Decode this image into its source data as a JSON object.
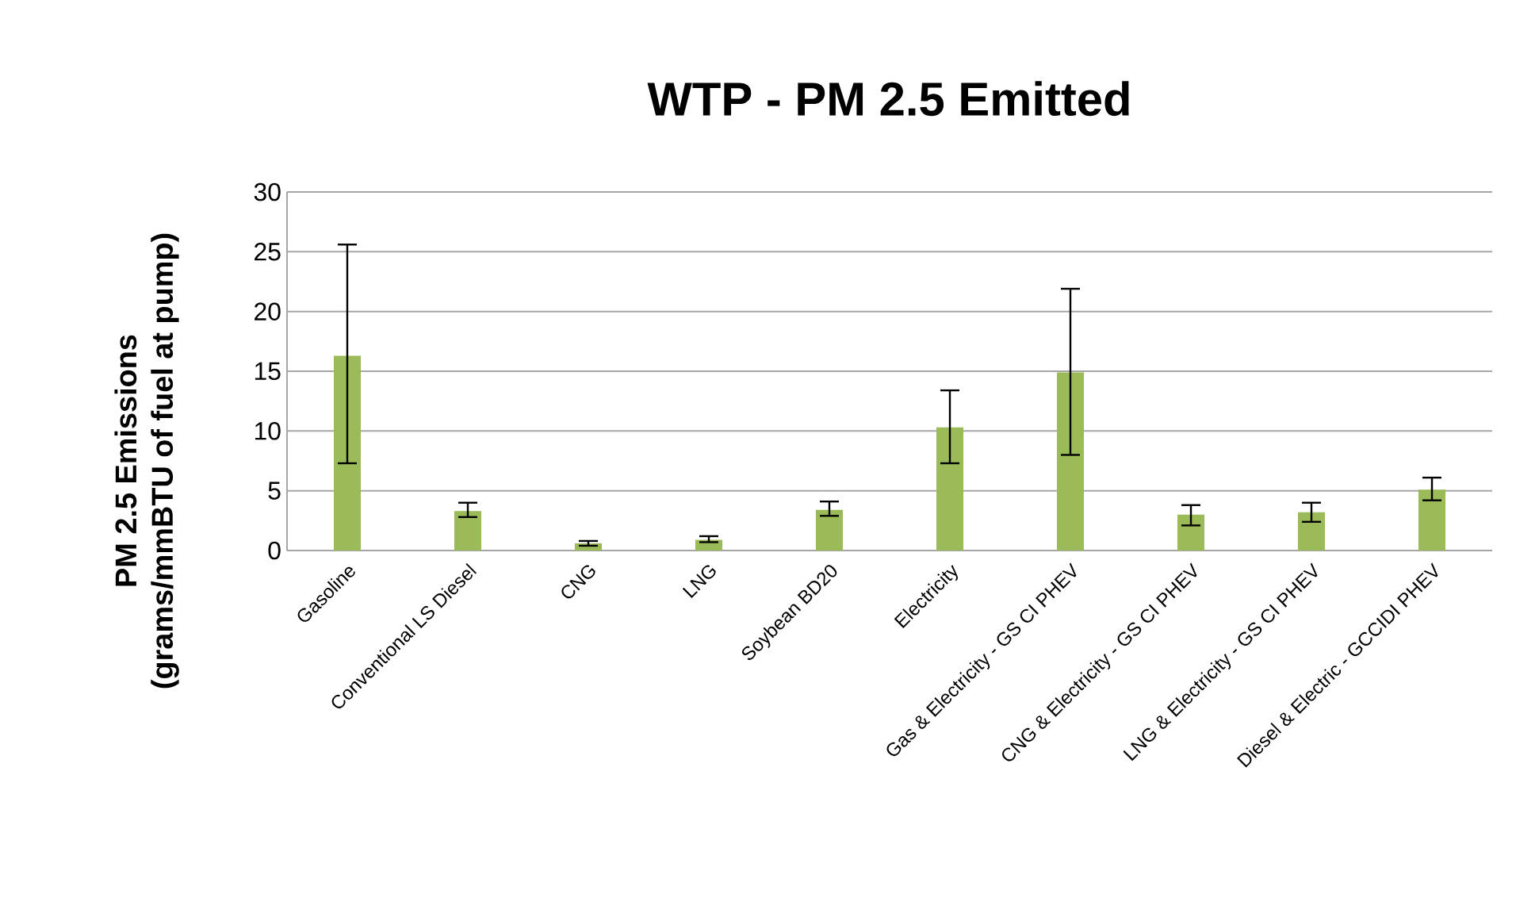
{
  "chart_data": {
    "type": "bar",
    "title": "WTP - PM 2.5 Emitted",
    "ylabel": "PM 2.5 Emissions\n(grams/mmBTU of fuel at pump)",
    "categories": [
      "Gasoline",
      "Conventional LS Diesel",
      "CNG",
      "LNG",
      "Soybean BD20",
      "Electricity",
      "Gas & Electricity - GS CI PHEV",
      "CNG & Electricity - GS CI PHEV",
      "LNG & Electricity - GS CI PHEV",
      "Diesel & Electric - GCCIDI PHEV"
    ],
    "values": [
      16.3,
      3.3,
      0.6,
      0.9,
      3.4,
      10.3,
      14.9,
      3.0,
      3.2,
      5.1
    ],
    "errors": [
      [
        7.3,
        25.6
      ],
      [
        2.8,
        4.0
      ],
      [
        0.4,
        0.8
      ],
      [
        0.7,
        1.2
      ],
      [
        2.9,
        4.1
      ],
      [
        7.3,
        13.4
      ],
      [
        8.0,
        21.9
      ],
      [
        2.1,
        3.8
      ],
      [
        2.4,
        4.0
      ],
      [
        4.2,
        6.1
      ]
    ],
    "color": "#9bbb59",
    "ylim": [
      0,
      30
    ],
    "yticks": [
      0,
      5,
      10,
      15,
      20,
      25,
      30
    ],
    "grid": "y"
  }
}
